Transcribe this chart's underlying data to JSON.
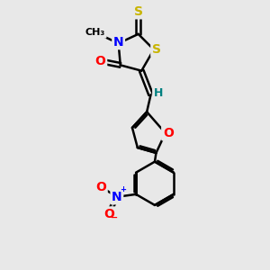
{
  "bg_color": "#e8e8e8",
  "bond_color": "#000000",
  "bond_width": 1.8,
  "atom_colors": {
    "S": "#c8b400",
    "N": "#0000ff",
    "O": "#ff0000",
    "H": "#008080",
    "C": "#000000"
  },
  "font_size": 9,
  "figsize": [
    3.0,
    3.0
  ],
  "dpi": 100
}
